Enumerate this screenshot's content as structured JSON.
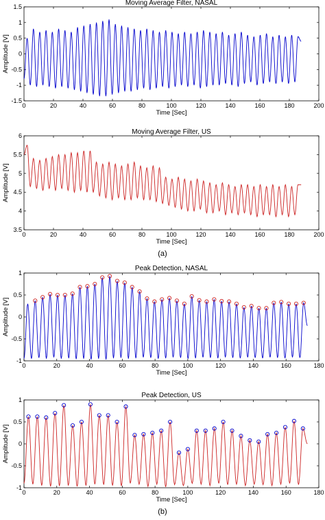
{
  "panels": [
    "(a)",
    "(b)"
  ],
  "chart_data": [
    {
      "type": "line",
      "title": "Moving Average Filter, NASAL",
      "xlabel": "Time [Sec]",
      "ylabel": "Amplitude [V]",
      "xlim": [
        0,
        200
      ],
      "ylim": [
        -1.5,
        1.5
      ],
      "xticks": [
        "0",
        "20",
        "40",
        "60",
        "80",
        "100",
        "120",
        "140",
        "160",
        "180",
        "200"
      ],
      "yticks": [
        "-1.5",
        "-1",
        "-0.5",
        "0",
        "0.5",
        "1",
        "1.5"
      ],
      "color": "#0000cc",
      "grid": false,
      "series": [
        {
          "values_note": "",
          "x_start": 0,
          "x_end": 188,
          "cycles": 44,
          "peaks": [
            0.5,
            0.8,
            0.7,
            0.75,
            0.7,
            0.8,
            0.75,
            0.7,
            0.85,
            0.9,
            0.95,
            1.0,
            1.05,
            1.1,
            0.95,
            0.9,
            0.85,
            0.8,
            0.75,
            0.8,
            0.75,
            0.7,
            0.75,
            0.7,
            0.65,
            0.7,
            0.65,
            0.7,
            0.75,
            0.7,
            0.65,
            0.7,
            0.6,
            0.65,
            0.7,
            0.6,
            0.55,
            0.6,
            0.65,
            0.55,
            0.6,
            0.55,
            0.6,
            0.55
          ],
          "troughs": [
            -0.8,
            -1.0,
            -1.05,
            -1.0,
            -1.05,
            -1.1,
            -1.05,
            -1.1,
            -1.15,
            -1.2,
            -1.25,
            -1.3,
            -1.35,
            -1.35,
            -1.3,
            -1.25,
            -1.2,
            -1.2,
            -1.15,
            -1.1,
            -1.15,
            -1.1,
            -1.05,
            -1.1,
            -1.05,
            -1.0,
            -1.05,
            -1.0,
            -1.1,
            -1.05,
            -1.0,
            -1.0,
            -0.95,
            -1.0,
            -1.05,
            -0.95,
            -0.9,
            -1.0,
            -0.95,
            -0.9,
            -0.95,
            -0.9,
            -0.95,
            -0.9
          ],
          "end": 0.4
        }
      ]
    },
    {
      "type": "line",
      "title": "Moving Average Filter, US",
      "xlabel": "Time [Sec]",
      "ylabel": "Amplitude [V]",
      "xlim": [
        0,
        200
      ],
      "ylim": [
        3.5,
        6
      ],
      "xticks": [
        "0",
        "20",
        "40",
        "60",
        "80",
        "100",
        "120",
        "140",
        "160",
        "180",
        "200"
      ],
      "yticks": [
        "3.5",
        "4",
        "4.5",
        "5",
        "5.5",
        "6"
      ],
      "color": "#cc2222",
      "grid": false,
      "series": [
        {
          "values_note": "",
          "x_start": 0,
          "x_end": 188,
          "cycles": 44,
          "peaks": [
            5.75,
            5.4,
            5.35,
            5.4,
            5.45,
            5.5,
            5.5,
            5.55,
            5.55,
            5.6,
            5.6,
            5.3,
            5.25,
            5.3,
            5.25,
            5.2,
            5.25,
            5.3,
            5.2,
            5.15,
            5.2,
            5.15,
            4.9,
            4.85,
            4.9,
            4.85,
            4.8,
            4.85,
            4.8,
            4.75,
            4.7,
            4.75,
            4.7,
            4.65,
            4.7,
            4.7,
            4.65,
            4.7,
            4.65,
            4.7,
            4.65,
            4.7,
            4.65,
            4.7
          ],
          "troughs": [
            5.5,
            4.65,
            4.6,
            4.55,
            4.6,
            4.55,
            4.6,
            4.55,
            4.5,
            4.55,
            4.5,
            4.5,
            4.4,
            4.35,
            4.3,
            4.35,
            4.3,
            4.3,
            4.35,
            4.3,
            4.3,
            4.25,
            4.2,
            4.15,
            4.1,
            4.05,
            4.0,
            4.0,
            4.05,
            3.95,
            3.95,
            4.0,
            3.9,
            3.95,
            3.9,
            3.95,
            3.9,
            3.85,
            3.9,
            3.9,
            3.85,
            3.9,
            3.85,
            3.9
          ],
          "end": 4.7
        }
      ]
    },
    {
      "type": "line",
      "title": "Peak Detection, NASAL",
      "xlabel": "Time [Sec]",
      "ylabel": "Amplitude [V]",
      "xlim": [
        0,
        180
      ],
      "ylim": [
        -1,
        1
      ],
      "xticks": [
        "0",
        "20",
        "40",
        "60",
        "80",
        "100",
        "120",
        "140",
        "160",
        "180"
      ],
      "yticks": [
        "-1",
        "-0.5",
        "0",
        "0.5",
        "1"
      ],
      "color": "#0000cc",
      "marker_color": "#cc2222",
      "grid": false,
      "series": [
        {
          "values_note": "",
          "x_start": 0,
          "x_end": 173,
          "cycles": 38,
          "peaks": [
            0.3,
            0.37,
            0.45,
            0.52,
            0.5,
            0.5,
            0.53,
            0.68,
            0.7,
            0.75,
            0.9,
            0.93,
            0.82,
            0.78,
            0.68,
            0.58,
            0.42,
            0.35,
            0.4,
            0.43,
            0.37,
            0.3,
            0.47,
            0.38,
            0.35,
            0.4,
            0.36,
            0.35,
            0.3,
            0.22,
            0.25,
            0.2,
            0.2,
            0.32,
            0.34,
            0.3,
            0.3,
            0.32
          ],
          "troughs": [
            -0.95,
            -0.95,
            -0.93,
            -0.95,
            -0.92,
            -0.95,
            -0.94,
            -0.96,
            -0.95,
            -0.97,
            -0.95,
            -0.97,
            -0.94,
            -0.93,
            -0.95,
            -0.94,
            -0.92,
            -0.93,
            -0.95,
            -0.94,
            -0.92,
            -0.93,
            -0.95,
            -0.94,
            -0.92,
            -0.93,
            -0.94,
            -0.92,
            -0.93,
            -0.94,
            -0.92,
            -0.93,
            -0.94,
            -0.92,
            -0.93,
            -0.94,
            -0.92,
            -0.93
          ],
          "markers_from": 1,
          "end": -0.2
        }
      ]
    },
    {
      "type": "line",
      "title": "Peak Detection, US",
      "xlabel": "Time [Sec]",
      "ylabel": "Amplitude [V]",
      "xlim": [
        0,
        180
      ],
      "ylim": [
        -1,
        1
      ],
      "xticks": [
        "0",
        "20",
        "40",
        "60",
        "80",
        "100",
        "120",
        "140",
        "160",
        "180"
      ],
      "yticks": [
        "-1",
        "-0.5",
        "0",
        "0.5",
        "1"
      ],
      "color": "#cc2222",
      "marker_color": "#0000cc",
      "grid": false,
      "series": [
        {
          "values_note": "",
          "x_start": 0,
          "x_end": 173,
          "cycles": 32,
          "peaks": [
            0.62,
            0.62,
            0.6,
            0.7,
            0.88,
            0.42,
            0.5,
            0.9,
            0.65,
            0.65,
            0.5,
            0.85,
            0.2,
            0.22,
            0.25,
            0.3,
            0.5,
            -0.2,
            -0.12,
            0.3,
            0.3,
            0.35,
            0.5,
            0.3,
            0.18,
            0.08,
            0.05,
            0.22,
            0.25,
            0.38,
            0.52,
            0.35
          ],
          "troughs": [
            -0.9,
            -0.92,
            -0.95,
            -0.97,
            -0.96,
            -0.95,
            -0.97,
            -0.95,
            -0.92,
            -0.93,
            -0.95,
            -0.96,
            -0.9,
            -0.92,
            -0.97,
            -0.92,
            -0.98,
            -0.93,
            -0.95,
            -0.9,
            -0.92,
            -0.95,
            -0.9,
            -0.93,
            -0.92,
            -0.95,
            -0.92,
            -0.93,
            -0.95,
            -0.92,
            -0.9,
            -0.93
          ],
          "markers_from": 0,
          "end": 0.0
        }
      ]
    }
  ]
}
